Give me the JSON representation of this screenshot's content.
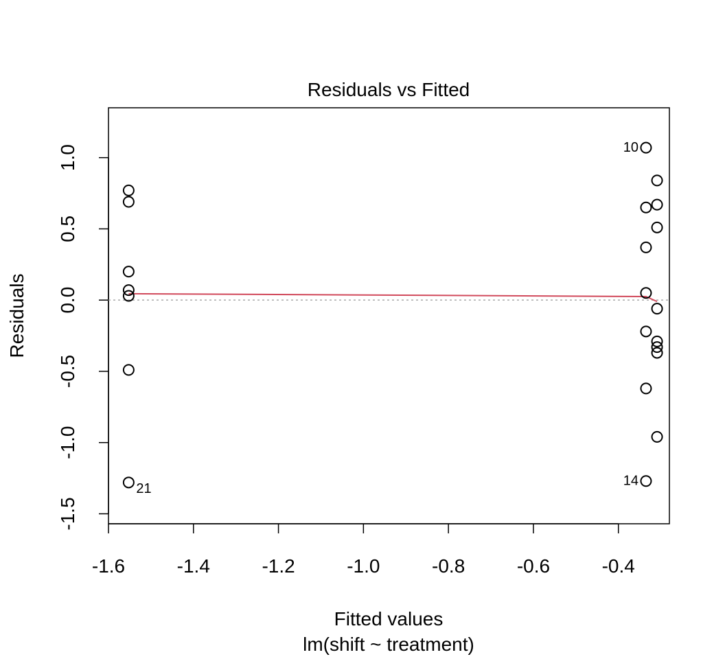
{
  "chart_data": {
    "type": "scatter",
    "title": "Residuals vs Fitted",
    "xlabel": "Fitted values",
    "subtitle": "lm(shift ~ treatment)",
    "ylabel": "Residuals",
    "xlim": [
      -1.6,
      -0.28
    ],
    "ylim": [
      -1.57,
      1.35
    ],
    "xticks": [
      -1.6,
      -1.4,
      -1.2,
      -1.0,
      -0.8,
      -0.6,
      -0.4
    ],
    "xtick_labels": [
      "-1.6",
      "-1.4",
      "-1.2",
      "-1.0",
      "-0.8",
      "-0.6",
      "-0.4"
    ],
    "yticks": [
      -1.5,
      -1.0,
      -0.5,
      0.0,
      0.5,
      1.0
    ],
    "ytick_labels": [
      "-1.5",
      "-1.0",
      "-0.5",
      "0.0",
      "0.5",
      "1.0"
    ],
    "grid": false,
    "reference_line": {
      "y": 0,
      "style": "dotted",
      "color": "#a9a9a9"
    },
    "smooth_line": {
      "color": "#d1495b",
      "x": [
        -1.5525,
        -0.335,
        -0.309
      ],
      "y": [
        0.045,
        0.025,
        -0.01
      ]
    },
    "points": {
      "x": [
        -1.5525,
        -1.5525,
        -1.5525,
        -1.5525,
        -1.5525,
        -1.5525,
        -1.5525,
        -0.335,
        -0.335,
        -0.335,
        -0.335,
        -0.335,
        -0.335,
        -0.335,
        -0.309,
        -0.309,
        -0.309,
        -0.309,
        -0.309,
        -0.309,
        -0.309,
        -0.309
      ],
      "y": [
        0.77,
        0.69,
        0.2,
        0.07,
        0.03,
        -0.49,
        -1.28,
        1.07,
        0.65,
        0.37,
        0.05,
        -0.22,
        -0.62,
        -1.27,
        0.84,
        0.67,
        0.51,
        -0.06,
        -0.29,
        -0.33,
        -0.37,
        -0.96
      ]
    },
    "point_labels": [
      {
        "text": "10",
        "index": 7,
        "side": "left"
      },
      {
        "text": "21",
        "index": 6,
        "side": "right"
      },
      {
        "text": "14",
        "index": 13,
        "side": "left"
      }
    ],
    "colors": {
      "points": "#000000",
      "smooth": "#d1495b",
      "reference": "#a9a9a9"
    }
  }
}
